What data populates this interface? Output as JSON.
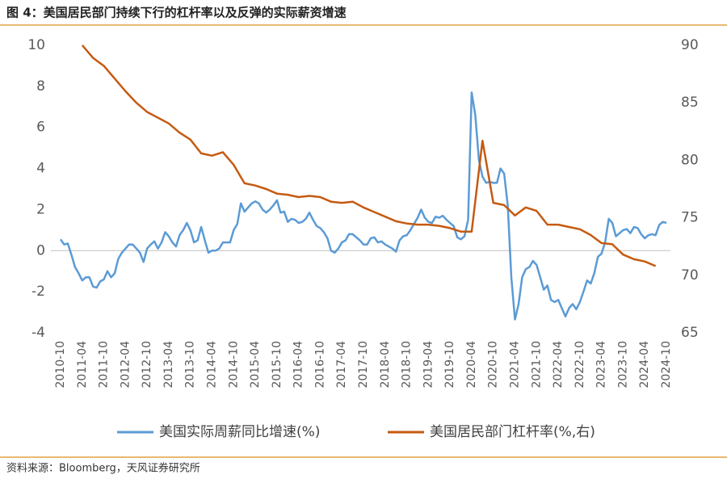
{
  "chart_data": {
    "type": "line",
    "title": "图 4：美国居民部门持续下行的杠杆率以及反弹的实际薪资增速",
    "source": "资料来源：Bloomberg，天风证券研究所",
    "xlim": [
      "2010-10",
      "2024-10"
    ],
    "xticks": [
      "2010-10",
      "2011-04",
      "2011-10",
      "2012-04",
      "2012-10",
      "2013-04",
      "2013-10",
      "2014-04",
      "2014-10",
      "2015-04",
      "2015-10",
      "2016-04",
      "2016-10",
      "2017-04",
      "2017-10",
      "2018-04",
      "2018-10",
      "2019-04",
      "2019-10",
      "2020-04",
      "2020-10",
      "2021-04",
      "2021-10",
      "2022-04",
      "2022-10",
      "2023-04",
      "2023-10",
      "2024-04",
      "2024-10"
    ],
    "ylim": [
      -4,
      10
    ],
    "yticks": [
      -4,
      -2,
      0,
      2,
      4,
      6,
      8,
      10
    ],
    "y2lim": [
      65,
      90
    ],
    "y2ticks": [
      65,
      70,
      75,
      80,
      85,
      90
    ],
    "legend": "bottom",
    "series": [
      {
        "name": "美国实际周薪同比增速(%)",
        "color": "#5b9bd5",
        "x": [
          "2010-10",
          "2010-11",
          "2010-12",
          "2011-01",
          "2011-02",
          "2011-03",
          "2011-04",
          "2011-05",
          "2011-06",
          "2011-07",
          "2011-08",
          "2011-09",
          "2011-10",
          "2011-11",
          "2011-12",
          "2012-01",
          "2012-02",
          "2012-03",
          "2012-04",
          "2012-05",
          "2012-06",
          "2012-07",
          "2012-08",
          "2012-09",
          "2012-10",
          "2012-11",
          "2012-12",
          "2013-01",
          "2013-02",
          "2013-03",
          "2013-04",
          "2013-05",
          "2013-06",
          "2013-07",
          "2013-08",
          "2013-09",
          "2013-10",
          "2013-11",
          "2013-12",
          "2014-01",
          "2014-02",
          "2014-03",
          "2014-04",
          "2014-05",
          "2014-06",
          "2014-07",
          "2014-08",
          "2014-09",
          "2014-10",
          "2014-11",
          "2014-12",
          "2015-01",
          "2015-02",
          "2015-03",
          "2015-04",
          "2015-05",
          "2015-06",
          "2015-07",
          "2015-08",
          "2015-09",
          "2015-10",
          "2015-11",
          "2015-12",
          "2016-01",
          "2016-02",
          "2016-03",
          "2016-04",
          "2016-05",
          "2016-06",
          "2016-07",
          "2016-08",
          "2016-09",
          "2016-10",
          "2016-11",
          "2016-12",
          "2017-01",
          "2017-02",
          "2017-03",
          "2017-04",
          "2017-05",
          "2017-06",
          "2017-07",
          "2017-08",
          "2017-09",
          "2017-10",
          "2017-11",
          "2017-12",
          "2018-01",
          "2018-02",
          "2018-03",
          "2018-04",
          "2018-05",
          "2018-06",
          "2018-07",
          "2018-08",
          "2018-09",
          "2018-10",
          "2018-11",
          "2018-12",
          "2019-01",
          "2019-02",
          "2019-03",
          "2019-04",
          "2019-05",
          "2019-06",
          "2019-07",
          "2019-08",
          "2019-09",
          "2019-10",
          "2019-11",
          "2019-12",
          "2020-01",
          "2020-02",
          "2020-03",
          "2020-04",
          "2020-05",
          "2020-06",
          "2020-07",
          "2020-08",
          "2020-09",
          "2020-10",
          "2020-11",
          "2020-12",
          "2021-01",
          "2021-02",
          "2021-03",
          "2021-04",
          "2021-05",
          "2021-06",
          "2021-07",
          "2021-08",
          "2021-09",
          "2021-10",
          "2021-11",
          "2021-12",
          "2022-01",
          "2022-02",
          "2022-03",
          "2022-04",
          "2022-05",
          "2022-06",
          "2022-07",
          "2022-08",
          "2022-09",
          "2022-10",
          "2022-11",
          "2022-12",
          "2023-01",
          "2023-02",
          "2023-03",
          "2023-04",
          "2023-05",
          "2023-06",
          "2023-07",
          "2023-08",
          "2023-09",
          "2023-10",
          "2023-11",
          "2023-12",
          "2024-01",
          "2024-02",
          "2024-03",
          "2024-04",
          "2024-05",
          "2024-06",
          "2024-07",
          "2024-08",
          "2024-09",
          "2024-10"
        ],
        "values": [
          0.55,
          0.3,
          0.35,
          -0.2,
          -0.8,
          -1.1,
          -1.45,
          -1.3,
          -1.3,
          -1.75,
          -1.8,
          -1.5,
          -1.4,
          -1.0,
          -1.3,
          -1.1,
          -0.4,
          -0.1,
          0.1,
          0.3,
          0.3,
          0.1,
          -0.1,
          -0.55,
          0.1,
          0.3,
          0.45,
          0.1,
          0.4,
          0.9,
          0.7,
          0.4,
          0.2,
          0.75,
          1.0,
          1.35,
          1.0,
          0.4,
          0.5,
          1.15,
          0.5,
          -0.1,
          0.0,
          0.0,
          0.1,
          0.4,
          0.4,
          0.4,
          1.0,
          1.3,
          2.3,
          1.9,
          2.1,
          2.3,
          2.4,
          2.3,
          2.0,
          1.85,
          2.0,
          2.2,
          2.45,
          1.85,
          1.9,
          1.4,
          1.55,
          1.5,
          1.35,
          1.4,
          1.55,
          1.85,
          1.5,
          1.2,
          1.1,
          0.9,
          0.6,
          0.0,
          -0.1,
          0.1,
          0.4,
          0.5,
          0.8,
          0.8,
          0.65,
          0.5,
          0.3,
          0.3,
          0.6,
          0.65,
          0.4,
          0.45,
          0.3,
          0.2,
          0.1,
          -0.05,
          0.5,
          0.7,
          0.75,
          1.0,
          1.3,
          1.6,
          2.0,
          1.6,
          1.4,
          1.35,
          1.65,
          1.6,
          1.7,
          1.5,
          1.35,
          1.2,
          0.65,
          0.55,
          0.7,
          1.5,
          7.7,
          6.6,
          4.4,
          3.6,
          3.3,
          3.35,
          3.3,
          3.3,
          4.0,
          3.75,
          2.2,
          -1.3,
          -3.35,
          -2.6,
          -1.3,
          -0.9,
          -0.8,
          -0.5,
          -0.7,
          -1.3,
          -1.9,
          -1.7,
          -2.4,
          -2.5,
          -2.4,
          -2.8,
          -3.2,
          -2.8,
          -2.6,
          -2.85,
          -2.5,
          -2.0,
          -1.45,
          -1.6,
          -1.1,
          -0.3,
          -0.15,
          0.4,
          1.55,
          1.35,
          0.7,
          0.85,
          1.0,
          1.05,
          0.85,
          1.15,
          1.1,
          0.8,
          0.6,
          0.75,
          0.8,
          0.75,
          1.25,
          1.4,
          1.35
        ]
      },
      {
        "name": "美国居民部门杠杆率(%,右)",
        "color": "#c55a11",
        "axis": "y2",
        "x": [
          "2011-04",
          "2011-07",
          "2011-10",
          "2012-01",
          "2012-04",
          "2012-07",
          "2012-10",
          "2013-01",
          "2013-04",
          "2013-07",
          "2013-10",
          "2014-01",
          "2014-04",
          "2014-07",
          "2014-10",
          "2015-01",
          "2015-04",
          "2015-07",
          "2015-10",
          "2016-01",
          "2016-04",
          "2016-07",
          "2016-10",
          "2017-01",
          "2017-04",
          "2017-07",
          "2017-10",
          "2018-01",
          "2018-04",
          "2018-07",
          "2018-10",
          "2019-01",
          "2019-04",
          "2019-07",
          "2019-10",
          "2020-01",
          "2020-04",
          "2020-07",
          "2020-10",
          "2021-01",
          "2021-04",
          "2021-07",
          "2021-10",
          "2022-01",
          "2022-04",
          "2022-07",
          "2022-10",
          "2023-01",
          "2023-04",
          "2023-07",
          "2023-10",
          "2024-01",
          "2024-04",
          "2024-07"
        ],
        "values": [
          90,
          88.9,
          88.2,
          87.1,
          86.0,
          85.0,
          84.2,
          83.7,
          83.2,
          82.4,
          81.8,
          80.6,
          80.4,
          80.7,
          79.6,
          78.0,
          77.8,
          77.5,
          77.1,
          77.0,
          76.8,
          76.9,
          76.8,
          76.4,
          76.3,
          76.4,
          75.9,
          75.5,
          75.1,
          74.7,
          74.5,
          74.4,
          74.4,
          74.3,
          74.1,
          73.8,
          73.8,
          81.7,
          76.3,
          76.1,
          75.2,
          75.9,
          75.6,
          74.4,
          74.4,
          74.2,
          74.0,
          73.5,
          72.8,
          72.7,
          71.8,
          71.4,
          71.2,
          70.8
        ]
      }
    ]
  }
}
